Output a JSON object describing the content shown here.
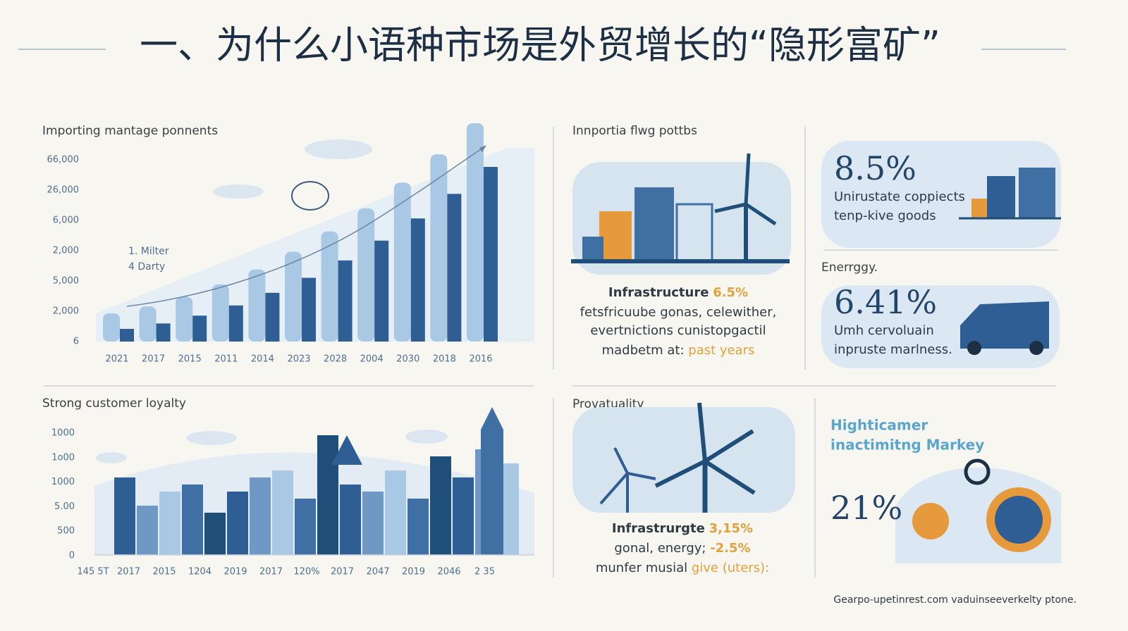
{
  "title": "一、为什么小语种市场是外贸增长的“隐形富矿”",
  "panels": [
    {
      "heading": "Importing mantage ponnents",
      "y_labels": [
        "66,000",
        "26,000",
        "6,000",
        "2,000",
        "5,000",
        "2,000",
        "6"
      ],
      "x_labels": [
        "2021",
        "2017",
        "2015",
        "2011",
        "2014",
        "2023",
        "2028",
        "2004",
        "2030",
        "2018",
        "2016"
      ],
      "notes": [
        "1. Milter",
        "4 Darty"
      ]
    },
    {
      "heading": "Innportia flwg pottbs",
      "stat_label": "Infrastructure",
      "stat_value": "6.5%",
      "lines": [
        "fetsfricuube gonas, celewither,",
        "evertnictions cunistopgactil"
      ],
      "last_line": [
        "madbetm at: ",
        "past years"
      ]
    },
    {
      "heading": "Enerrggy.",
      "cards": [
        {
          "value": "8.5%",
          "lines": [
            "Unirustate coppiects",
            "tenp-kive goods"
          ]
        },
        {
          "value": "6.41%",
          "lines": [
            "Umh cervoluain",
            "inpruste marlness."
          ]
        }
      ]
    },
    {
      "heading": "Strong customer loyalty",
      "y_labels": [
        "1000",
        "1o00",
        "1000",
        "5.00",
        "500",
        "0"
      ],
      "x_labels": [
        "145 5T",
        "2017",
        "2015",
        "1204",
        "2019",
        "2017",
        "120%",
        "2017",
        "2047",
        "2019",
        "2046",
        "2 35"
      ]
    },
    {
      "heading": "Provatuality",
      "stat_label": "Infrastrurgte",
      "stat_value": "3,15%",
      "lines": [
        [
          "gonal, energy; ",
          "-2.5%"
        ],
        [
          "munfer musial ",
          "give (uters):"
        ]
      ]
    },
    {
      "heading": [
        "Highticamer",
        "inactimitng Markey"
      ],
      "value": "21%"
    }
  ],
  "footer": "Gearpo-upetinrest.com vaduinseeverkelty ptone."
}
